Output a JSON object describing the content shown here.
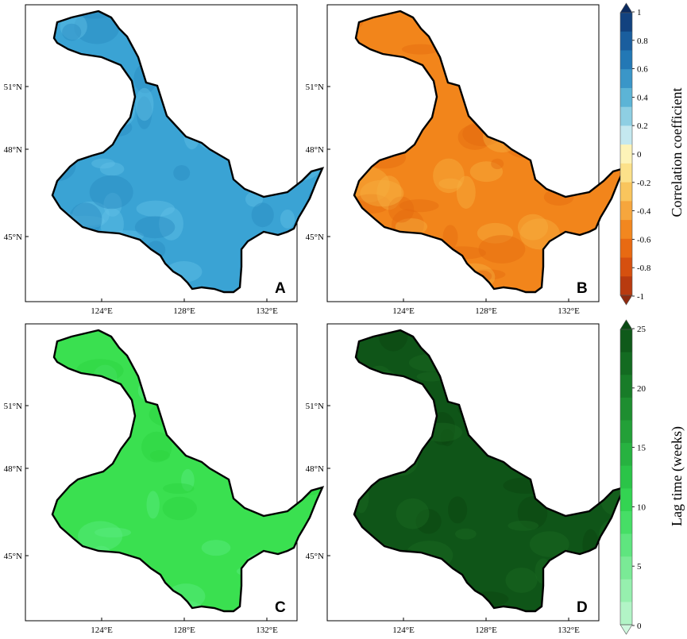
{
  "figure": {
    "panels": [
      {
        "id": "A",
        "letter": "A",
        "fill": "#3aa3d4",
        "fill_light": "#62c0e6",
        "fill_dark": "#2a8cc2"
      },
      {
        "id": "B",
        "letter": "B",
        "fill": "#f2851b",
        "fill_light": "#f7b040",
        "fill_dark": "#e56a10"
      },
      {
        "id": "C",
        "letter": "C",
        "fill": "#3ae050",
        "fill_light": "#5cec80",
        "fill_dark": "#2cd23e"
      },
      {
        "id": "D",
        "letter": "D",
        "fill": "#0f5518",
        "fill_light": "#1a6a22",
        "fill_dark": "#0a4410"
      }
    ],
    "lon_ticks": [
      "124°E",
      "128°E",
      "132°E"
    ],
    "lat_ticks": [
      "51°N",
      "48°N",
      "45°N"
    ],
    "colorbar_top": {
      "title": "Correlation coefficient",
      "ticks": [
        "1",
        "0.8",
        "0.6",
        "0.4",
        "0.2",
        "0",
        "-0.2",
        "-0.4",
        "-0.6",
        "-0.8",
        "-1"
      ],
      "colors": [
        "#0a2a5e",
        "#12427f",
        "#1a5e9e",
        "#2378b5",
        "#3a96c8",
        "#5cb4d6",
        "#8ecfe3",
        "#c4e8ef",
        "#fdf3b8",
        "#fce18a",
        "#f9c55d",
        "#f6a63d",
        "#f2871f",
        "#e86a12",
        "#d6500f",
        "#b83a0f",
        "#8e2a0f"
      ]
    },
    "colorbar_bottom": {
      "title": "Lag time (weeks)",
      "ticks": [
        "25",
        "20",
        "15",
        "10",
        "5",
        "0"
      ],
      "colors": [
        "#0b4a14",
        "#0f5a1a",
        "#136b21",
        "#187c28",
        "#1e8e30",
        "#23a038",
        "#27b240",
        "#2bc448",
        "#33d452",
        "#46de66",
        "#5fe57f",
        "#7aea96",
        "#96efae",
        "#b2f4c6",
        "#cff8de"
      ]
    }
  }
}
